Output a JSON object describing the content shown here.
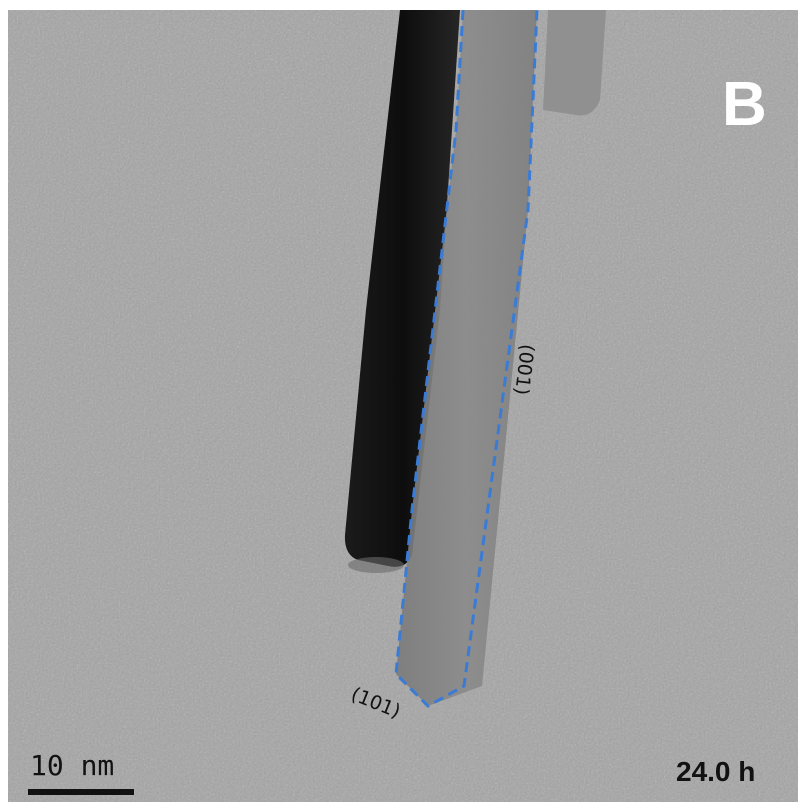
{
  "panel": {
    "letter": "B",
    "time": "24.0 h"
  },
  "scale_bar": {
    "label": "10 nm"
  },
  "facets": {
    "side": "(001)",
    "tip": "(101)"
  },
  "colors": {
    "background_gray": "#a9a9a9",
    "outline_blue": "#3a7bd5",
    "label_white": "#ffffff",
    "text_dark": "#111111"
  }
}
